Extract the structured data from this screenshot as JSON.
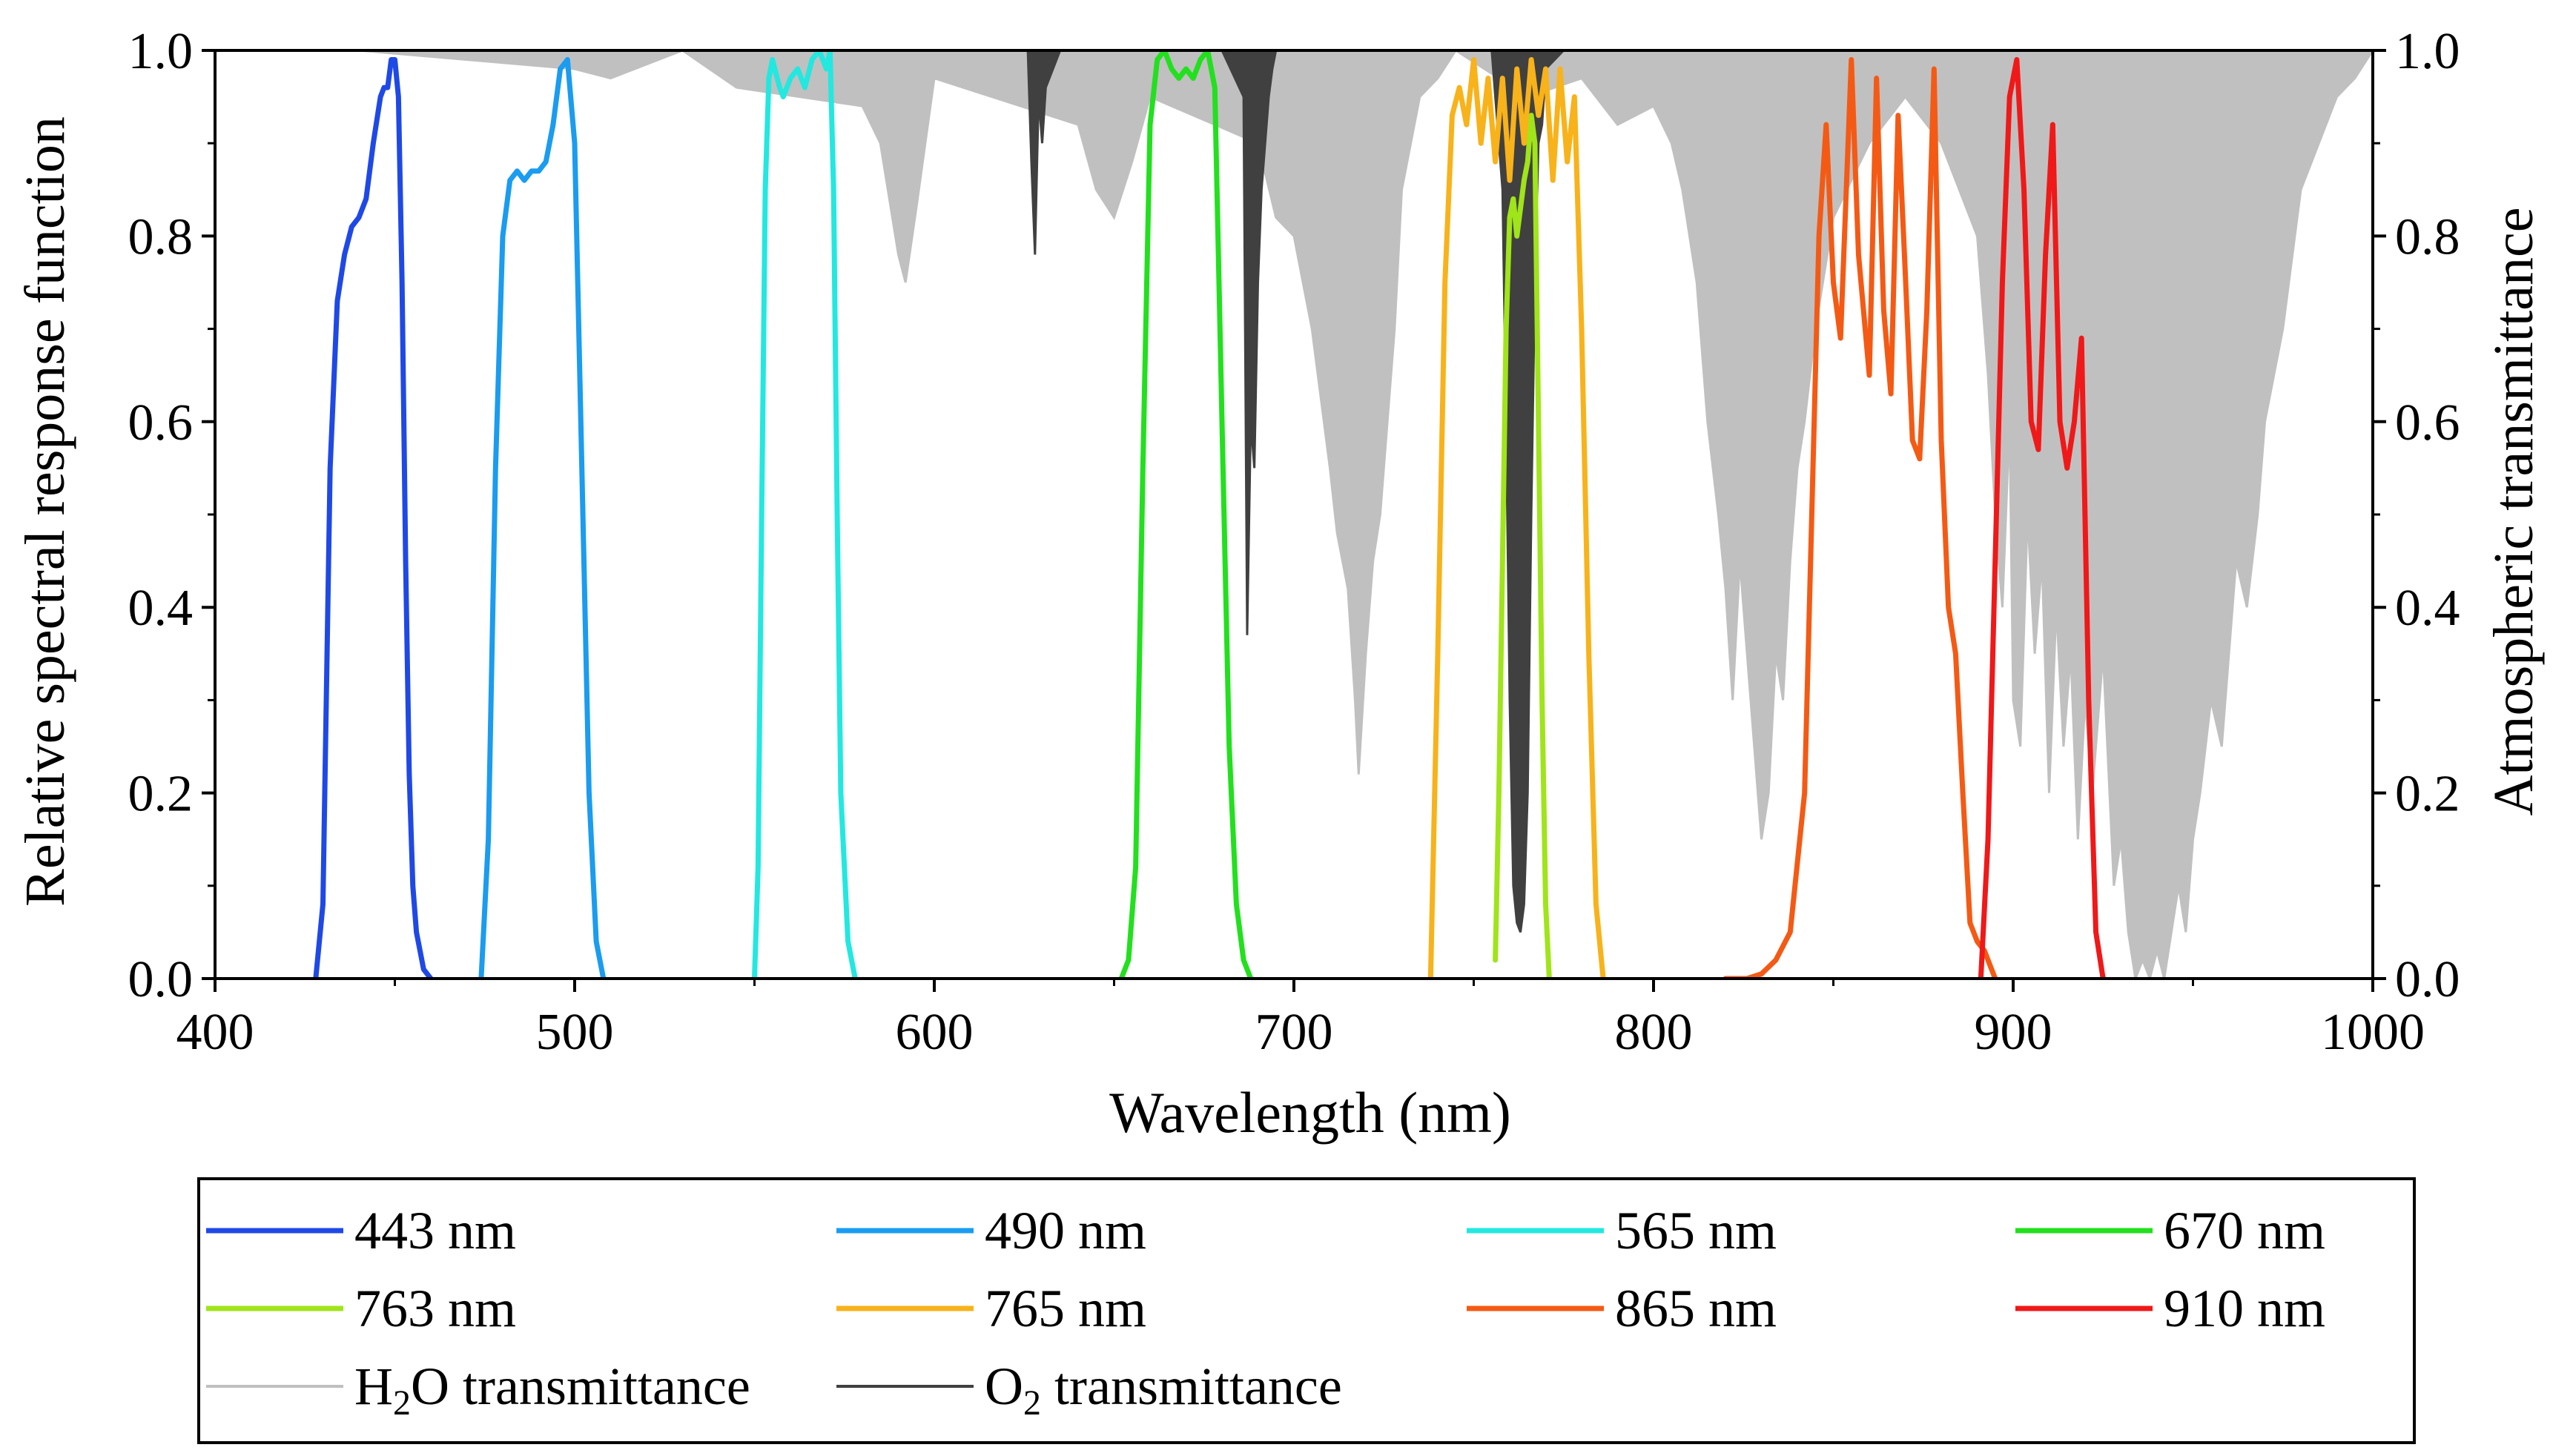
{
  "chart_data": {
    "type": "line",
    "title": "",
    "xlabel": "Wavelength (nm)",
    "ylabel": "Relative spectral response function",
    "y2label": "Atmospheric transmittance",
    "xlim": [
      400,
      1000
    ],
    "ylim": [
      0,
      1.0
    ],
    "y2lim": [
      0,
      1.0
    ],
    "xticks": [
      400,
      500,
      600,
      700,
      800,
      900,
      1000
    ],
    "yticks": [
      0.0,
      0.2,
      0.4,
      0.6,
      0.8,
      1.0
    ],
    "xtick_labels": [
      "400",
      "500",
      "600",
      "700",
      "800",
      "900",
      "1000"
    ],
    "ytick_labels": [
      "0.0",
      "0.2",
      "0.4",
      "0.6",
      "0.8",
      "1.0"
    ],
    "y2tick_labels": [
      "0.0",
      "0.2",
      "0.4",
      "0.6",
      "0.8",
      "1.0"
    ],
    "legend_position": "bottom (below plot)",
    "series": [
      {
        "name": "443 nm",
        "legend_label": "443 nm",
        "color": "#1f49e6",
        "axis": "left",
        "x": [
          428,
          430,
          432,
          434,
          436,
          438,
          440,
          442,
          444,
          446,
          447,
          448,
          449,
          450,
          451,
          452,
          453,
          454,
          455,
          456,
          458,
          460
        ],
        "y": [
          0.0,
          0.08,
          0.55,
          0.73,
          0.78,
          0.81,
          0.82,
          0.84,
          0.9,
          0.95,
          0.96,
          0.96,
          0.99,
          0.99,
          0.95,
          0.75,
          0.45,
          0.22,
          0.1,
          0.05,
          0.01,
          0.0
        ]
      },
      {
        "name": "490 nm",
        "legend_label": "490 nm",
        "color": "#1a9cf0",
        "axis": "left",
        "x": [
          474,
          476,
          478,
          480,
          482,
          484,
          486,
          488,
          490,
          492,
          494,
          496,
          498,
          500,
          502,
          504,
          506,
          508
        ],
        "y": [
          0.0,
          0.15,
          0.55,
          0.8,
          0.86,
          0.87,
          0.86,
          0.87,
          0.87,
          0.88,
          0.92,
          0.98,
          0.99,
          0.9,
          0.55,
          0.2,
          0.04,
          0.0
        ]
      },
      {
        "name": "565 nm",
        "legend_label": "565 nm",
        "color": "#22e8e0",
        "axis": "left",
        "x": [
          550,
          551,
          552,
          553,
          554,
          555,
          557,
          558,
          560,
          562,
          564,
          566,
          568,
          570,
          571,
          572,
          573,
          574,
          576,
          578
        ],
        "y": [
          0.0,
          0.12,
          0.5,
          0.85,
          0.97,
          0.99,
          0.96,
          0.95,
          0.97,
          0.98,
          0.96,
          0.99,
          1.0,
          0.98,
          1.0,
          0.85,
          0.5,
          0.2,
          0.04,
          0.0
        ]
      },
      {
        "name": "670 nm",
        "legend_label": "670 nm",
        "color": "#22e01e",
        "axis": "left",
        "x": [
          652,
          654,
          656,
          658,
          660,
          662,
          664,
          666,
          668,
          670,
          672,
          674,
          676,
          678,
          680,
          682,
          684,
          686,
          688
        ],
        "y": [
          0.0,
          0.02,
          0.12,
          0.55,
          0.92,
          0.99,
          1.0,
          0.98,
          0.97,
          0.98,
          0.97,
          0.99,
          1.0,
          0.96,
          0.6,
          0.25,
          0.08,
          0.02,
          0.0
        ]
      },
      {
        "name": "763 nm",
        "legend_label": "763 nm",
        "color": "#a0e41a",
        "axis": "left",
        "x": [
          756,
          757,
          758,
          759,
          760,
          761,
          762,
          763,
          764,
          765,
          766,
          767,
          768,
          769,
          770,
          771
        ],
        "y": [
          0.02,
          0.2,
          0.45,
          0.7,
          0.82,
          0.84,
          0.8,
          0.83,
          0.86,
          0.88,
          0.93,
          0.9,
          0.6,
          0.3,
          0.08,
          0.0
        ]
      },
      {
        "name": "765 nm",
        "legend_label": "765 nm",
        "color": "#f8b21a",
        "axis": "left",
        "x": [
          738,
          740,
          742,
          744,
          746,
          748,
          750,
          752,
          754,
          756,
          758,
          760,
          762,
          764,
          766,
          768,
          770,
          772,
          774,
          776,
          778,
          780,
          782,
          784,
          786
        ],
        "y": [
          0.0,
          0.35,
          0.75,
          0.93,
          0.96,
          0.92,
          0.99,
          0.9,
          0.97,
          0.88,
          0.97,
          0.86,
          0.98,
          0.9,
          0.99,
          0.93,
          0.98,
          0.86,
          0.98,
          0.88,
          0.95,
          0.7,
          0.35,
          0.08,
          0.0
        ]
      },
      {
        "name": "865 nm",
        "legend_label": "865 nm",
        "color": "#f45a14",
        "axis": "left",
        "x": [
          820,
          826,
          830,
          834,
          838,
          842,
          844,
          846,
          848,
          850,
          852,
          855,
          857,
          860,
          862,
          864,
          866,
          868,
          870,
          872,
          874,
          876,
          878,
          880,
          882,
          884,
          886,
          888,
          890,
          892,
          895
        ],
        "y": [
          0.0,
          0.0,
          0.005,
          0.02,
          0.05,
          0.2,
          0.5,
          0.8,
          0.92,
          0.75,
          0.69,
          0.99,
          0.78,
          0.65,
          0.97,
          0.72,
          0.63,
          0.93,
          0.76,
          0.58,
          0.56,
          0.72,
          0.98,
          0.58,
          0.4,
          0.35,
          0.2,
          0.06,
          0.04,
          0.03,
          0.0
        ]
      },
      {
        "name": "910 nm",
        "legend_label": "910 nm",
        "color": "#f01818",
        "axis": "left",
        "x": [
          891,
          893,
          895,
          897,
          899,
          901,
          903,
          905,
          907,
          909,
          911,
          913,
          915,
          917,
          919,
          921,
          923,
          925
        ],
        "y": [
          0.0,
          0.15,
          0.45,
          0.75,
          0.95,
          0.99,
          0.85,
          0.6,
          0.57,
          0.78,
          0.92,
          0.6,
          0.55,
          0.6,
          0.69,
          0.3,
          0.05,
          0.0
        ]
      },
      {
        "name": "H2O transmittance",
        "legend_label": "H₂O transmittance",
        "color": "#c0c0c0",
        "axis": "right",
        "style": "absorption-lines",
        "x": [
          400,
          440,
          500,
          510,
          530,
          545,
          580,
          585,
          590,
          592,
          595,
          600,
          640,
          645,
          650,
          655,
          660,
          690,
          695,
          700,
          705,
          710,
          712,
          715,
          717,
          718,
          720,
          722,
          724,
          726,
          728,
          730,
          735,
          740,
          745,
          765,
          780,
          790,
          800,
          805,
          808,
          812,
          815,
          818,
          820,
          822,
          824,
          826,
          828,
          830,
          832,
          834,
          836,
          838,
          840,
          842,
          845,
          850,
          860,
          870,
          880,
          890,
          893,
          895,
          897,
          899,
          900,
          902,
          904,
          906,
          908,
          910,
          912,
          914,
          916,
          918,
          920,
          922,
          925,
          928,
          930,
          932,
          934,
          936,
          938,
          940,
          942,
          944,
          946,
          948,
          950,
          952,
          955,
          958,
          960,
          962,
          965,
          968,
          970,
          975,
          980,
          985,
          990,
          995,
          1000
        ],
        "y": [
          1.0,
          1.0,
          0.98,
          0.97,
          1.0,
          0.96,
          0.94,
          0.9,
          0.78,
          0.75,
          0.83,
          0.97,
          0.92,
          0.85,
          0.82,
          0.88,
          0.95,
          0.9,
          0.82,
          0.8,
          0.7,
          0.55,
          0.48,
          0.42,
          0.3,
          0.22,
          0.35,
          0.45,
          0.5,
          0.6,
          0.7,
          0.85,
          0.95,
          0.97,
          1.0,
          0.95,
          0.97,
          0.92,
          0.94,
          0.9,
          0.85,
          0.75,
          0.6,
          0.5,
          0.42,
          0.3,
          0.45,
          0.35,
          0.25,
          0.15,
          0.2,
          0.35,
          0.3,
          0.45,
          0.55,
          0.6,
          0.7,
          0.82,
          0.9,
          0.95,
          0.9,
          0.8,
          0.65,
          0.5,
          0.4,
          0.6,
          0.3,
          0.25,
          0.5,
          0.35,
          0.45,
          0.2,
          0.4,
          0.25,
          0.35,
          0.15,
          0.3,
          0.2,
          0.35,
          0.1,
          0.15,
          0.05,
          0.0,
          0.02,
          0.0,
          0.03,
          0.0,
          0.05,
          0.1,
          0.05,
          0.15,
          0.2,
          0.3,
          0.25,
          0.35,
          0.45,
          0.4,
          0.5,
          0.6,
          0.7,
          0.85,
          0.9,
          0.95,
          0.97,
          1.0
        ]
      },
      {
        "name": "O2 transmittance",
        "legend_label": "O₂ transmittance",
        "color": "#404040",
        "axis": "right",
        "style": "absorption-lines",
        "x": [
          620,
          626,
          627,
          628,
          629,
          630,
          631,
          635,
          680,
          686,
          687,
          688,
          689,
          690,
          691,
          692,
          693,
          694,
          695,
          700,
          755,
          758,
          759,
          760,
          761,
          762,
          763,
          764,
          765,
          766,
          767,
          768,
          769,
          770,
          775,
          1000
        ],
        "y": [
          1.0,
          1.0,
          0.88,
          0.78,
          0.95,
          0.9,
          0.96,
          1.0,
          1.0,
          0.95,
          0.37,
          0.6,
          0.55,
          0.75,
          0.85,
          0.9,
          0.95,
          0.98,
          1.0,
          1.0,
          1.0,
          0.85,
          0.6,
          0.3,
          0.1,
          0.06,
          0.05,
          0.08,
          0.2,
          0.5,
          0.75,
          0.9,
          0.92,
          0.98,
          1.0,
          1.0
        ]
      }
    ]
  }
}
